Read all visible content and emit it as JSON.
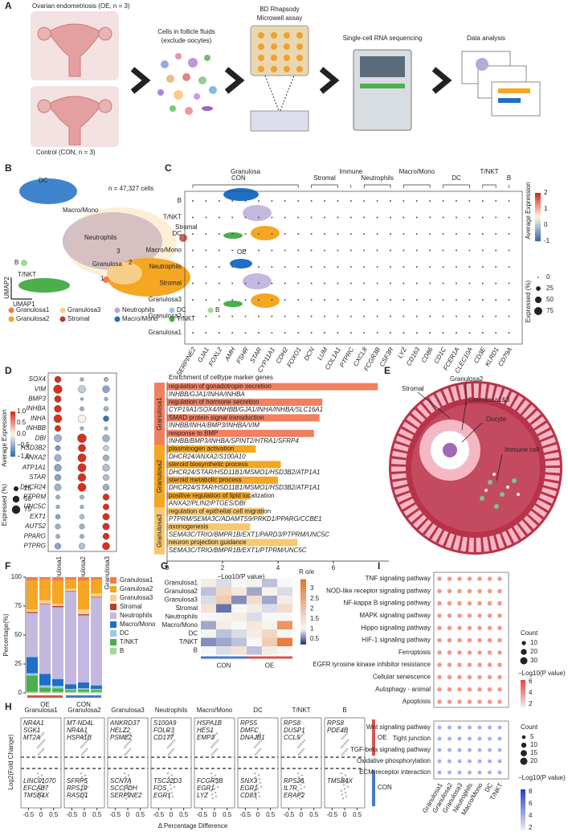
{
  "panels": [
    "A",
    "B",
    "C",
    "D",
    "E",
    "F",
    "G",
    "H",
    "I"
  ],
  "a": {
    "oe": "Ovarian endometriosis (OE, n = 3)",
    "con": "Control (CON, n = 3)",
    "cells": "Cells in follicle fluids",
    "exclude": "(exclude oocytes)",
    "bd": "BD Rhapsody",
    "microwell": "Microwell assay",
    "seq": "Single-cell RNA sequencing",
    "analysis": "Data analysis"
  },
  "b": {
    "dc": "DC",
    "macro": "Macro/Mono",
    "neutro": "Neutrophils",
    "stromal": "Stromal",
    "bcell": "B",
    "granulosa": "Granulosa",
    "g3": "3",
    "g2": "2",
    "g1": "1",
    "tnkt": "T/NKT",
    "n": "n = 47,327 cells",
    "umap2": "UMAP2",
    "umap1": "UMAP1",
    "con": "CON",
    "oe": "OE",
    "legend": [
      {
        "name": "Granulosa1",
        "color": "#f07c4a"
      },
      {
        "name": "Granulosa2",
        "color": "#f5a623"
      },
      {
        "name": "Granulosa3",
        "color": "#f8cf8a"
      },
      {
        "name": "Stromal",
        "color": "#c0392b"
      },
      {
        "name": "Neutrophils",
        "color": "#b8a9d9"
      },
      {
        "name": "Macro/Mono",
        "color": "#1f6fc5"
      },
      {
        "name": "DC",
        "color": "#9cc8e8"
      },
      {
        "name": "T/NKT",
        "color": "#4cae4c"
      },
      {
        "name": "B",
        "color": "#9bdc8f"
      }
    ]
  },
  "c": {
    "groups": [
      {
        "name": "Granulosa",
        "from": 0,
        "to": 8
      },
      {
        "name": "Stromal",
        "from": 9,
        "to": 11
      },
      {
        "name": "Immune",
        "from": 12,
        "to": 12
      },
      {
        "name": "Neutrophils",
        "from": 13,
        "to": 15
      },
      {
        "name": "Macro/Mono",
        "from": 16,
        "to": 18
      },
      {
        "name": "DC",
        "from": 19,
        "to": 21
      },
      {
        "name": "T/NKT",
        "from": 22,
        "to": 23
      },
      {
        "name": "B",
        "from": 24,
        "to": 24
      }
    ],
    "rows": [
      "B",
      "T/NKT",
      "DC",
      "Macro/Mono",
      "Neutrophils",
      "Stromal",
      "Granulosa3",
      "Granulosa2",
      "Granulosa1"
    ],
    "genes": [
      "SERPINE2",
      "GJA1",
      "FOXL2",
      "AMH",
      "FSHR",
      "STAR",
      "CYP11A1",
      "CDH2",
      "FOXO1",
      "DCN",
      "LUM",
      "COL1A1",
      "PTPRC",
      "CXCL8",
      "FCGR3B",
      "CSF3R",
      "LYZ",
      "CD163",
      "CD86",
      "CD1C",
      "FCER1A",
      "CLEC10A",
      "CD3E",
      "KLRD1",
      "CD79A"
    ],
    "color_title": "Average Expression",
    "color_ticks": [
      2,
      1,
      0,
      -1
    ],
    "size_title": "Expressed (%)",
    "size_ticks": [
      0,
      25,
      50,
      75
    ]
  },
  "d": {
    "genes": [
      "SOX4",
      "VIM",
      "BMP3",
      "INHBA",
      "INHA",
      "INHBB",
      "DBI",
      "HSD3B2",
      "ANXA2",
      "ATP1A1",
      "STAR",
      "DHCR24",
      "PTPRM",
      "UNC5C",
      "EXT1",
      "AUTS2",
      "PPARG",
      "PTPRG"
    ],
    "columns": [
      "Granulosa1",
      "Granulosa2",
      "Granulosa3"
    ],
    "expression": [
      [
        1,
        -0.5,
        -0.5
      ],
      [
        1,
        -0.3,
        -0.6
      ],
      [
        1,
        -0.5,
        -0.5
      ],
      [
        1,
        -0.5,
        -0.5
      ],
      [
        1,
        0,
        -1
      ],
      [
        1,
        -0.5,
        -0.5
      ],
      [
        -0.5,
        1,
        -0.5
      ],
      [
        -0.7,
        1,
        -0.3
      ],
      [
        -0.5,
        1,
        -0.5
      ],
      [
        -0.6,
        1,
        -0.4
      ],
      [
        -0.6,
        1,
        -0.4
      ],
      [
        -0.5,
        1,
        -0.5
      ],
      [
        -0.5,
        -0.5,
        1
      ],
      [
        -0.5,
        -0.5,
        1
      ],
      [
        -0.6,
        -0.4,
        1
      ],
      [
        -0.5,
        -0.5,
        1
      ],
      [
        -0.5,
        -0.5,
        1
      ],
      [
        -0.6,
        -0.4,
        1
      ]
    ],
    "expressed": [
      [
        45,
        15,
        20
      ],
      [
        80,
        60,
        55
      ],
      [
        50,
        10,
        15
      ],
      [
        55,
        20,
        25
      ],
      [
        70,
        65,
        35
      ],
      [
        40,
        15,
        15
      ],
      [
        60,
        85,
        55
      ],
      [
        30,
        60,
        35
      ],
      [
        50,
        75,
        40
      ],
      [
        55,
        75,
        55
      ],
      [
        45,
        70,
        40
      ],
      [
        50,
        75,
        45
      ],
      [
        20,
        20,
        45
      ],
      [
        15,
        15,
        40
      ],
      [
        25,
        25,
        50
      ],
      [
        30,
        30,
        50
      ],
      [
        20,
        20,
        45
      ],
      [
        40,
        40,
        60
      ]
    ],
    "color_title": "Average Expression",
    "color_ticks": [
      {
        "value": 1,
        "label": "1.0"
      },
      {
        "value": 0.5,
        "label": "0.5"
      },
      {
        "value": 0,
        "label": "0.0"
      },
      {
        "value": -0.5,
        "label": "−0.5"
      },
      {
        "value": -1,
        "label": "−1.0"
      }
    ],
    "size_title": "Expressed (%)",
    "size_ticks": [
      25,
      50,
      75
    ],
    "bar_title": "Enrichment of celltype marker genes",
    "groups": [
      {
        "name": "Granulosa1",
        "color": "#f08060"
      },
      {
        "name": "Granulosa2",
        "color": "#f5a623"
      },
      {
        "name": "Granulosa3",
        "color": "#f8c870"
      }
    ],
    "terms": [
      {
        "term": "regulation of gonadotropin secretion",
        "genes": "INHBB/GJA1/INHA/INHBA",
        "value": 7.6,
        "group": 0
      },
      {
        "term": "regulation of hormone secretion",
        "genes": "CYP19A1/SOX4/INHBB/GJA1/INHA/INHBA/SLC16A1",
        "value": 5.6,
        "group": 0
      },
      {
        "term": "SMAD protein signal transduction",
        "genes": "INHBB/INHA/BMP3/INHBA/VIM",
        "value": 5.5,
        "group": 0
      },
      {
        "term": "response to BMP",
        "genes": "INHBB/BMP3/INHBA/SPINT2/HTRA1/SFRP4",
        "value": 5.3,
        "group": 0
      },
      {
        "term": "plasminogen activation",
        "genes": "DHCR24/ANXA2/S100A10",
        "value": 3.2,
        "group": 1
      },
      {
        "term": "steroid biosynthetic process",
        "genes": "DHCR24/STAR/HSD11B1/MSMO1/HSD3B2/ATP1A1",
        "value": 4.1,
        "group": 1
      },
      {
        "term": "steroid metabolic process",
        "genes": "DHCR24/STAR/HSD11B1/MSMO1/HSD3B2/ATP1A1",
        "value": 4.0,
        "group": 1
      },
      {
        "term": "positive regulation of lipid localization",
        "genes": "ANXA2/PLIN2/PTGES/DBI",
        "value": 3.0,
        "group": 1
      },
      {
        "term": "regulation of epithelial cell migration",
        "genes": "PTPRM/SEMA3C/ADAMTS9/PRKD1/PPARG/CCBE1",
        "value": 3.5,
        "group": 2
      },
      {
        "term": "axonogenesis",
        "genes": "SEMA3C/TRIO/BMPR1B/EXT1/PARD3/PTPRM/UNC5C",
        "value": 3.0,
        "group": 2
      },
      {
        "term": "neuron projection guidance",
        "genes": "SEMA3C/TRIO/BMPR1B/EXT1/PTPRM/UNC5C",
        "value": 4.7,
        "group": 2
      }
    ],
    "xlim": [
      0,
      8
    ],
    "xticks": [
      0,
      2,
      4,
      6
    ],
    "xlabel": "−Log10(P value)"
  },
  "e": {
    "stromal": "Stromal",
    "granulosa2": "Granulosa2",
    "granulosa13": "Granulosa1&3",
    "oocyte": "Oocyte",
    "immune": "Immune cell"
  },
  "f": {
    "type": "bar",
    "groups": [
      "OE",
      "CON"
    ],
    "ylabel": "Percentage(%)",
    "ylim": [
      0,
      100
    ],
    "yticks": [
      0,
      25,
      50,
      75,
      100
    ],
    "series": [
      {
        "name": "Granulosa1",
        "color": "#f07c4a",
        "values": [
          3,
          2,
          3,
          2,
          3,
          2
        ]
      },
      {
        "name": "Granulosa2",
        "color": "#f5a623",
        "values": [
          25,
          18,
          20,
          8,
          25,
          12
        ]
      },
      {
        "name": "Granulosa3",
        "color": "#f8cf8a",
        "values": [
          2,
          3,
          2,
          2,
          4,
          3
        ]
      },
      {
        "name": "Stromal",
        "color": "#c0392b",
        "values": [
          1,
          0.5,
          1,
          0.5,
          1,
          0.5
        ]
      },
      {
        "name": "Neutrophils",
        "color": "#c4b8e0",
        "values": [
          38,
          60,
          62,
          80,
          58,
          76
        ]
      },
      {
        "name": "Macro/Mono",
        "color": "#1f6fc5",
        "values": [
          14,
          10,
          6,
          4,
          5,
          3
        ]
      },
      {
        "name": "DC",
        "color": "#9cc8e8",
        "values": [
          2,
          2,
          2,
          1,
          1,
          1
        ]
      },
      {
        "name": "T/NKT",
        "color": "#4cae4c",
        "values": [
          14,
          3.5,
          3,
          1.5,
          2,
          1.5
        ]
      },
      {
        "name": "B",
        "color": "#9bdc8f",
        "values": [
          1,
          1,
          1,
          1,
          1,
          1
        ]
      }
    ]
  },
  "g": {
    "rows": [
      "Granulosa1",
      "Granulosa2",
      "Granulosa3",
      "Stromal",
      "Neutrophils",
      "Macro/Mono",
      "DC",
      "T/NKT",
      "B"
    ],
    "groups": [
      "CON",
      "OE"
    ],
    "values": [
      [
        1.2,
        0.9,
        1.0,
        1.1,
        0.8,
        1.0
      ],
      [
        0.8,
        1.6,
        1.3,
        0.7,
        1.1,
        0.9
      ],
      [
        0.9,
        1.8,
        0.6,
        1.5,
        0.7,
        1.2
      ],
      [
        1.4,
        0.5,
        1.0,
        1.2,
        0.9,
        1.5
      ],
      [
        1.0,
        1.1,
        1.2,
        0.9,
        1.0,
        1.0
      ],
      [
        0.7,
        1.2,
        1.0,
        1.3,
        1.1,
        2.8
      ],
      [
        1.1,
        0.8,
        0.9,
        1.2,
        1.6,
        1.0
      ],
      [
        0.6,
        0.7,
        0.8,
        1.0,
        1.8,
        3.2
      ],
      [
        1.0,
        0.9,
        1.4,
        0.8,
        1.2,
        1.0
      ]
    ],
    "legend_title": "R o/e",
    "lim": [
      0.3,
      3.4
    ],
    "ticks": [
      3,
      2.5,
      2,
      1.5,
      1,
      0.5
    ]
  },
  "h": {
    "panels": [
      {
        "title": "Granulosa1",
        "color": "#f07c4a",
        "up": [
          "NR4A1",
          "SGK1",
          "MT2A"
        ],
        "down": [
          "LINC01070",
          "EFCAB7",
          "TMSB4X"
        ]
      },
      {
        "title": "Granulosa2",
        "color": "#f5a623",
        "up": [
          "MT-ND4L",
          "NR4A1",
          "HSPA1B"
        ],
        "down": [
          "SFRP5",
          "RPS19",
          "RASD1"
        ]
      },
      {
        "title": "Granulosa3",
        "color": "#f8c060",
        "up": [
          "ANKRD37",
          "HELZ2",
          "PSME2"
        ],
        "down": [
          "SCN7A",
          "SCCPDH",
          "SERPINE2"
        ]
      },
      {
        "title": "Neutrophils",
        "color": "#b8a9d9",
        "up": [
          "S100A9",
          "FOLR3",
          "CD177"
        ],
        "down": [
          "TSC22D3",
          "FOS",
          "EGR1"
        ]
      },
      {
        "title": "Macro/Mono",
        "color": "#1f6fc5",
        "up": [
          "HSPA1B",
          "HES1",
          "EMP3"
        ],
        "down": [
          "FCGR3B",
          "EGR1",
          "LYZ"
        ]
      },
      {
        "title": "DC",
        "color": "#9cc8e8",
        "up": [
          "RPS5",
          "DMFC",
          "DNAJB1"
        ],
        "down": [
          "SNX3",
          "EGR1",
          "CD83"
        ]
      },
      {
        "title": "T/NKT",
        "color": "#4cae4c",
        "up": [
          "RPS8",
          "DUSP1",
          "CCL5"
        ],
        "down": [
          "RPS26",
          "IL7R",
          "ERAP2"
        ]
      },
      {
        "title": "B",
        "color": "#6cc46a",
        "up": [
          "RPS8",
          "PDE4B"
        ],
        "down": [
          "TMSB4X"
        ]
      }
    ],
    "ylabel": "Log2(Fold Change)",
    "xlabel": "Δ Percentage Difference",
    "xlim": [
      -0.8,
      0.8
    ],
    "xticks": [
      -0.5,
      0,
      0.5
    ],
    "oe": "OE",
    "con": "CON"
  },
  "i": {
    "top": [
      "TNF signaling pathway",
      "NOD-like receptor signaling pathway",
      "NF-kappa B signaling pathway",
      "MAPK signaling pathway",
      "Hippo signaling pathway",
      "HIF-1 signaling pathway",
      "Ferroptosis",
      "EGFR tyrosine kinase inhibitor resistance",
      "Cellular senescence",
      "Autophagy - animal",
      "Apoptosis"
    ],
    "bottom": [
      "Wnt signaling pathway",
      "Tight junction",
      "TGF-beta signaling pathway",
      "Oxidative phosphorylation",
      "ECM-receptor interaction"
    ],
    "columns": [
      "Granulosa1",
      "Granulosa2",
      "Granulosa3",
      "Neutrophils",
      "Macro/Mono",
      "DC",
      "T/NKT"
    ],
    "count_title": "Count",
    "p_title": "−Log10(P value)",
    "top_count_ticks": [
      10,
      20,
      30
    ],
    "top_p_ticks": [
      2,
      4,
      6
    ],
    "bottom_count_ticks": [
      5,
      10,
      15,
      20
    ],
    "bottom_p_ticks": [
      2,
      4,
      6,
      8
    ]
  }
}
